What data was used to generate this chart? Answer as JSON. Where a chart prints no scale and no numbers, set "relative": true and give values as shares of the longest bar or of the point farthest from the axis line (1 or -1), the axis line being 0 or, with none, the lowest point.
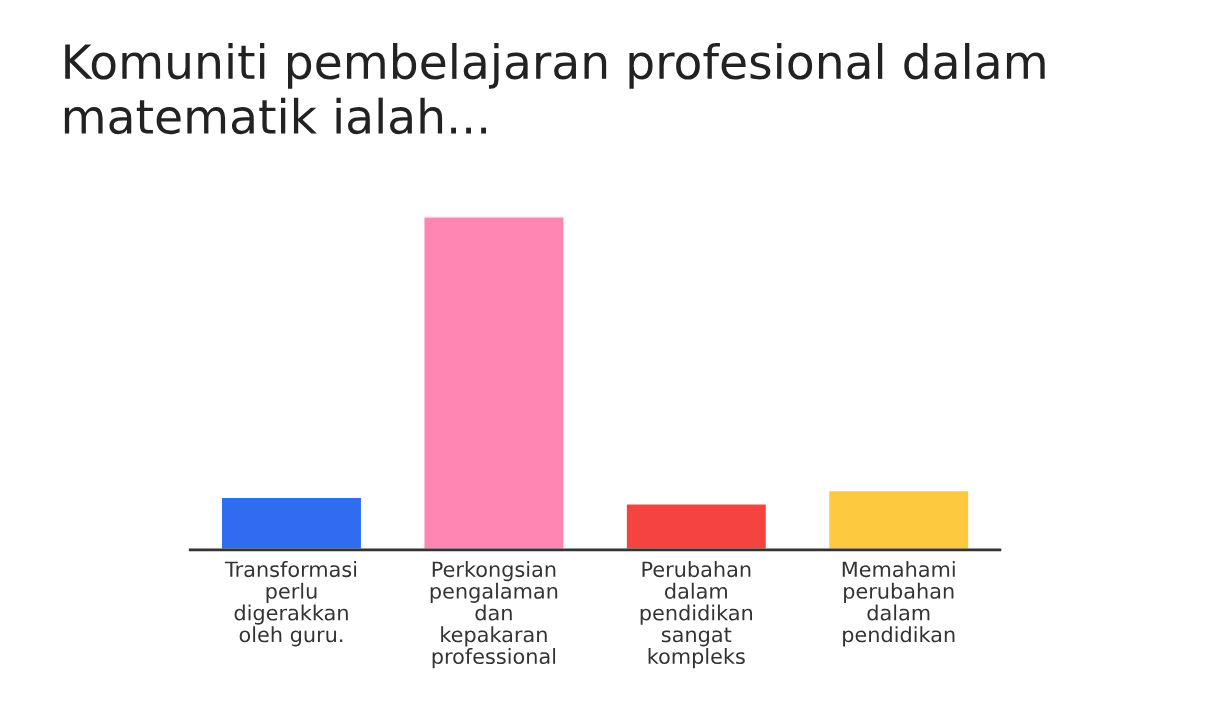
{
  "chart_data": {
    "type": "bar",
    "title": "Komuniti pembelajaran profesional dalam\nmatematik ialah...",
    "categories": [
      "Transformasi\nperlu\ndigerakkan\noleh guru.",
      "Perkongsian\npengalaman\ndan\nkepakaran\nprofessional",
      "Perubahan\ndalam\npendidikan\nsangat\nkompleks",
      "Memahami\nperubahan\ndalam\npendidikan"
    ],
    "values": [
      0.16,
      1,
      0.14,
      0.18
    ],
    "colors": [
      "#2f6cf0",
      "#ff86b3",
      "#f5443f",
      "#fdc93e"
    ],
    "relative": true,
    "grid": false,
    "legend": false
  }
}
